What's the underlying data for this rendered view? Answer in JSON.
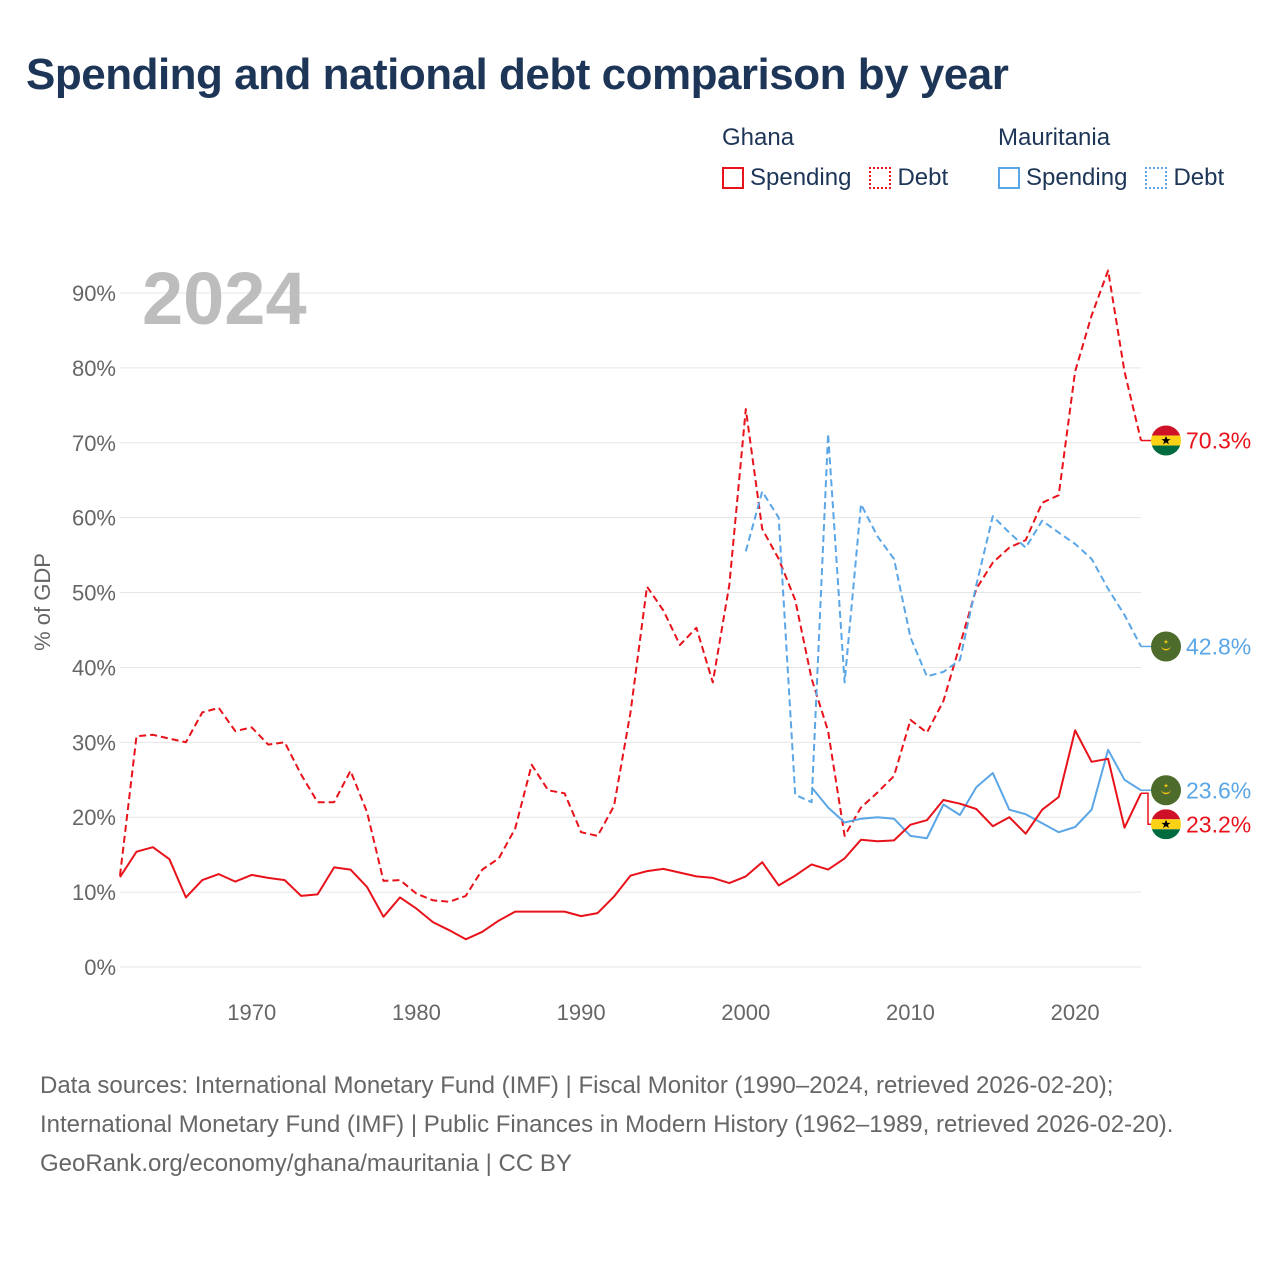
{
  "colors": {
    "ghana": "#e8121b",
    "mauritania": "#5aa6e6",
    "title": "#1d3557",
    "axis_text": "#666666",
    "year_watermark": "#bdbdbd",
    "grid": "#e6e6e6"
  },
  "title": "Spending and national debt comparison by year",
  "legend": {
    "ghana": {
      "label": "Ghana",
      "spending": "Spending",
      "debt": "Debt"
    },
    "mauritania": {
      "label": "Mauritania",
      "spending": "Spending",
      "debt": "Debt"
    }
  },
  "footer": {
    "sources": "Data sources: International Monetary Fund (IMF) | Fiscal Monitor (1990–2024, retrieved 2026-02-20); International Monetary Fund (IMF) | Public Finances in Modern History (1962–1989, retrieved 2026-02-20).",
    "credit": "GeoRank.org/economy/ghana/mauritania | CC BY"
  },
  "chart_data": {
    "type": "line",
    "year_label": "2024",
    "ylabel": "% of GDP",
    "xlabel": "",
    "xlim": [
      1962,
      2024
    ],
    "ylim": [
      0,
      90
    ],
    "x_ticks": [
      1970,
      1980,
      1990,
      2000,
      2010,
      2020
    ],
    "y_ticks": [
      {
        "value": 0,
        "label": "0%"
      },
      {
        "value": 10,
        "label": "10%"
      },
      {
        "value": 20,
        "label": "20%"
      },
      {
        "value": 30,
        "label": "30%"
      },
      {
        "value": 40,
        "label": "40%"
      },
      {
        "value": 50,
        "label": "50%"
      },
      {
        "value": 60,
        "label": "60%"
      },
      {
        "value": 70,
        "label": "70%"
      },
      {
        "value": 80,
        "label": "80%"
      },
      {
        "value": 90,
        "label": "90%"
      }
    ],
    "series": [
      {
        "name": "Ghana Debt",
        "country": "ghana",
        "style": "dashed",
        "end_label": "70.3%",
        "end_value": 70.3,
        "flag": "ghana",
        "points": [
          [
            1962,
            12.2
          ],
          [
            1963,
            30.8
          ],
          [
            1964,
            31
          ],
          [
            1965,
            30.5
          ],
          [
            1966,
            30
          ],
          [
            1967,
            34
          ],
          [
            1968,
            34.6
          ],
          [
            1969,
            31.5
          ],
          [
            1970,
            32
          ],
          [
            1971,
            29.7
          ],
          [
            1972,
            30
          ],
          [
            1973,
            25.7
          ],
          [
            1974,
            22
          ],
          [
            1975,
            22
          ],
          [
            1976,
            26.2
          ],
          [
            1977,
            20.7
          ],
          [
            1978,
            11.5
          ],
          [
            1979,
            11.6
          ],
          [
            1980,
            9.8
          ],
          [
            1981,
            8.9
          ],
          [
            1982,
            8.7
          ],
          [
            1983,
            9.5
          ],
          [
            1984,
            13
          ],
          [
            1985,
            14.5
          ],
          [
            1986,
            18.5
          ],
          [
            1987,
            27
          ],
          [
            1988,
            23.6
          ],
          [
            1989,
            23.2
          ],
          [
            1990,
            18
          ],
          [
            1991,
            17.5
          ],
          [
            1992,
            21.5
          ],
          [
            1993,
            34
          ],
          [
            1994,
            50.8
          ],
          [
            1995,
            47.6
          ],
          [
            1996,
            43
          ],
          [
            1997,
            45.3
          ],
          [
            1998,
            38
          ],
          [
            1999,
            51
          ],
          [
            2000,
            74.5
          ],
          [
            2001,
            58.5
          ],
          [
            2002,
            54.5
          ],
          [
            2003,
            49
          ],
          [
            2004,
            38.5
          ],
          [
            2005,
            31.5
          ],
          [
            2006,
            17.5
          ],
          [
            2007,
            21.3
          ],
          [
            2008,
            23.3
          ],
          [
            2009,
            25.5
          ],
          [
            2010,
            33
          ],
          [
            2011,
            31.3
          ],
          [
            2012,
            35.5
          ],
          [
            2013,
            43
          ],
          [
            2014,
            50.5
          ],
          [
            2015,
            54
          ],
          [
            2016,
            56
          ],
          [
            2017,
            57
          ],
          [
            2018,
            62
          ],
          [
            2019,
            63
          ],
          [
            2020,
            79.5
          ],
          [
            2021,
            87
          ],
          [
            2022,
            93
          ],
          [
            2023,
            79.5
          ],
          [
            2024,
            70.3
          ]
        ]
      },
      {
        "name": "Mauritania Debt",
        "country": "mauritania",
        "style": "dashed",
        "end_label": "42.8%",
        "end_value": 42.8,
        "flag": "mauritania",
        "points": [
          [
            2000,
            55.5
          ],
          [
            2001,
            63.5
          ],
          [
            2002,
            60
          ],
          [
            2003,
            23
          ],
          [
            2004,
            22
          ],
          [
            2005,
            71.2
          ],
          [
            2006,
            38
          ],
          [
            2007,
            61.8
          ],
          [
            2008,
            57.5
          ],
          [
            2009,
            54.5
          ],
          [
            2010,
            44
          ],
          [
            2011,
            38.8
          ],
          [
            2012,
            39.4
          ],
          [
            2013,
            41
          ],
          [
            2014,
            51
          ],
          [
            2015,
            60.2
          ],
          [
            2016,
            58
          ],
          [
            2017,
            56
          ],
          [
            2018,
            59.6
          ],
          [
            2019,
            58
          ],
          [
            2020,
            56.5
          ],
          [
            2021,
            54.5
          ],
          [
            2022,
            50.5
          ],
          [
            2023,
            47
          ],
          [
            2024,
            42.8
          ]
        ]
      },
      {
        "name": "Mauritania Spending",
        "country": "mauritania",
        "style": "solid",
        "end_label": "23.6%",
        "end_value": 23.6,
        "flag": "mauritania",
        "points": [
          [
            2004,
            24
          ],
          [
            2005,
            21.3
          ],
          [
            2006,
            19.3
          ],
          [
            2007,
            19.8
          ],
          [
            2008,
            20
          ],
          [
            2009,
            19.8
          ],
          [
            2010,
            17.5
          ],
          [
            2011,
            17.2
          ],
          [
            2012,
            21.7
          ],
          [
            2013,
            20.3
          ],
          [
            2014,
            24
          ],
          [
            2015,
            25.9
          ],
          [
            2016,
            21
          ],
          [
            2017,
            20.4
          ],
          [
            2018,
            19.2
          ],
          [
            2019,
            18
          ],
          [
            2020,
            18.7
          ],
          [
            2021,
            21
          ],
          [
            2022,
            29
          ],
          [
            2023,
            25
          ],
          [
            2024,
            23.6
          ]
        ]
      },
      {
        "name": "Ghana Spending",
        "country": "ghana",
        "style": "solid",
        "end_label": "23.2%",
        "end_value": 23.2,
        "flag": "ghana",
        "points": [
          [
            1962,
            12
          ],
          [
            1963,
            15.4
          ],
          [
            1964,
            16
          ],
          [
            1965,
            14.4
          ],
          [
            1966,
            9.3
          ],
          [
            1967,
            11.6
          ],
          [
            1968,
            12.4
          ],
          [
            1969,
            11.4
          ],
          [
            1970,
            12.3
          ],
          [
            1971,
            11.9
          ],
          [
            1972,
            11.6
          ],
          [
            1973,
            9.5
          ],
          [
            1974,
            9.7
          ],
          [
            1975,
            13.3
          ],
          [
            1976,
            13
          ],
          [
            1977,
            10.7
          ],
          [
            1978,
            6.7
          ],
          [
            1979,
            9.3
          ],
          [
            1980,
            7.8
          ],
          [
            1981,
            6
          ],
          [
            1982,
            4.9
          ],
          [
            1983,
            3.7
          ],
          [
            1984,
            4.7
          ],
          [
            1985,
            6.2
          ],
          [
            1986,
            7.4
          ],
          [
            1987,
            7.4
          ],
          [
            1988,
            7.4
          ],
          [
            1989,
            7.4
          ],
          [
            1990,
            6.8
          ],
          [
            1991,
            7.2
          ],
          [
            1992,
            9.4
          ],
          [
            1993,
            12.2
          ],
          [
            1994,
            12.8
          ],
          [
            1995,
            13.1
          ],
          [
            1996,
            12.6
          ],
          [
            1997,
            12.1
          ],
          [
            1998,
            11.9
          ],
          [
            1999,
            11.2
          ],
          [
            2000,
            12.1
          ],
          [
            2001,
            14
          ],
          [
            2002,
            10.9
          ],
          [
            2003,
            12.2
          ],
          [
            2004,
            13.7
          ],
          [
            2005,
            13
          ],
          [
            2006,
            14.5
          ],
          [
            2007,
            17
          ],
          [
            2008,
            16.8
          ],
          [
            2009,
            16.9
          ],
          [
            2010,
            19
          ],
          [
            2011,
            19.6
          ],
          [
            2012,
            22.3
          ],
          [
            2013,
            21.8
          ],
          [
            2014,
            21.1
          ],
          [
            2015,
            18.8
          ],
          [
            2016,
            20
          ],
          [
            2017,
            17.8
          ],
          [
            2018,
            21
          ],
          [
            2019,
            22.7
          ],
          [
            2020,
            31.6
          ],
          [
            2021,
            27.4
          ],
          [
            2022,
            27.8
          ],
          [
            2023,
            18.6
          ],
          [
            2024,
            23.2
          ]
        ]
      }
    ]
  }
}
